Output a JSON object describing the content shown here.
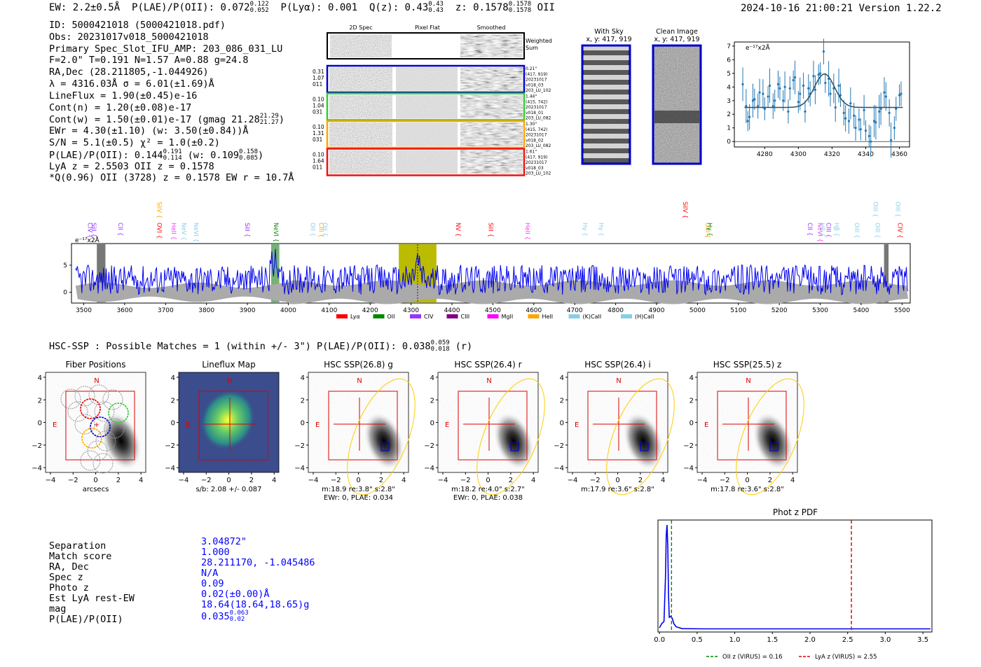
{
  "header": {
    "ew": "EW: 2.2±0.5Å",
    "plae_label": "P(LAE)/P(OII): 0.072",
    "plae_hi": "0.122",
    "plae_lo": "0.052",
    "plya": "P(Lyα): 0.001",
    "q_label": "Q(z): 0.43",
    "q_hi": "0.43",
    "q_lo": "0.43",
    "z_label": "z: 0.1578",
    "z_hi": "0.1578",
    "z_lo": "0.1578",
    "line": "OII",
    "timestamp": "2024-10-16 21:00:21  Version 1.22.2"
  },
  "info": {
    "id": "ID: 5000421018 (5000421018.pdf)",
    "obs": "Obs: 20231017v018_5000421018",
    "primary": "Primary Spec_Slot_IFU_AMP: 203_086_031_LU",
    "fiber": "F=2.0\"  T=0.191  N=1.57  A=0.88  g=24.8",
    "radec": "RA,Dec (28.211805,-1.044926)",
    "lambda": "λ = 4316.03Å  σ = 6.01(±1.69)Å",
    "lineflux": "LineFlux = 1.90(±0.45)e-16",
    "contn": "Cont(n) = 1.20(±0.08)e-17",
    "contw": "Cont(w) = 1.50(±0.01)e-17 (gmag 21.28",
    "contw_hi": "21.29",
    "contw_lo": "21.27",
    "ewr": "EWr = 4.30(±1.10) (w: 3.50(±0.84))Å",
    "sn": "S/N = 5.1(±0.5)  χ² = 1.0(±0.2)",
    "plae": "P(LAE)/P(OII): 0.144",
    "plae_hi": "0.191",
    "plae_lo": "0.114",
    "plae_w": "(w: 0.109",
    "plae_w_hi": "0.158",
    "plae_w_lo": "0.085",
    "lya": "LyA z = 2.5503  OII z = 0.1578",
    "qline": "*Q(0.96) OII (3728) z = 0.1578  EW r = 10.7Å"
  },
  "cutouts": {
    "col_labels": [
      "2D Spec",
      "Pixel Flat",
      "Smoothed"
    ],
    "weighted": [
      "Weighted",
      "Sum"
    ],
    "rows": [
      {
        "left": [
          "0.31",
          "1.07",
          "011"
        ],
        "right": [
          "0.21\"",
          "(417, 919)",
          "20231017",
          "v018_03",
          "203_LU_102"
        ],
        "color": "#0000cc"
      },
      {
        "left": [
          "0.10",
          "1.04",
          "031"
        ],
        "right": [
          "1.44\"",
          "(415, 742)",
          "20231017",
          "v018_01",
          "203_LU_082"
        ],
        "color": "#33cc33"
      },
      {
        "left": [
          "0.10",
          "1.31",
          "031"
        ],
        "right": [
          "1.30\"",
          "(415, 742)",
          "20231017",
          "v018_02",
          "203_LU_082"
        ],
        "color": "#ffa500"
      },
      {
        "left": [
          "0.10",
          "1.64",
          "011"
        ],
        "right": [
          "1.61\"",
          "(417, 919)",
          "20231017",
          "v018_03",
          "203_LU_102"
        ],
        "color": "#ee1111"
      }
    ],
    "with_sky": "With Sky",
    "with_sky_coords": "x, y: 417, 919",
    "clean": "Clean Image",
    "clean_coords": "x, y: 417, 919"
  },
  "fit_plot": {
    "unit": "e⁻¹⁷x2Å",
    "xticks": [
      "4280",
      "4300",
      "4320",
      "4340",
      "4360"
    ],
    "yticks": [
      "0",
      "1",
      "2",
      "3",
      "4",
      "5",
      "6",
      "7"
    ],
    "data": [
      [
        4267,
        4.2
      ],
      [
        4269,
        2.6
      ],
      [
        4270,
        1.5
      ],
      [
        4271,
        1.8
      ],
      [
        4273,
        3.0
      ],
      [
        4274,
        3.1
      ],
      [
        4276,
        2.6
      ],
      [
        4277,
        3.6
      ],
      [
        4279,
        3.5
      ],
      [
        4280,
        2.4
      ],
      [
        4282,
        3.3
      ],
      [
        4283,
        4.1
      ],
      [
        4285,
        2.6
      ],
      [
        4286,
        3.0
      ],
      [
        4288,
        4.2
      ],
      [
        4289,
        3.9
      ],
      [
        4291,
        3.0
      ],
      [
        4292,
        4.0
      ],
      [
        4294,
        2.2
      ],
      [
        4295,
        3.9
      ],
      [
        4297,
        4.5
      ],
      [
        4298,
        4.7
      ],
      [
        4300,
        2.9
      ],
      [
        4301,
        3.5
      ],
      [
        4303,
        4.1
      ],
      [
        4304,
        2.2
      ],
      [
        4306,
        3.9
      ],
      [
        4307,
        3.5
      ],
      [
        4309,
        4.8
      ],
      [
        4310,
        3.8
      ],
      [
        4312,
        4.9
      ],
      [
        4313,
        5.0
      ],
      [
        4315,
        6.6
      ],
      [
        4316,
        4.3
      ],
      [
        4318,
        4.6
      ],
      [
        4319,
        3.5
      ],
      [
        4321,
        3.9
      ],
      [
        4322,
        2.5
      ],
      [
        4324,
        4.1
      ],
      [
        4325,
        3.4
      ],
      [
        4327,
        2.1
      ],
      [
        4328,
        1.7
      ],
      [
        4330,
        1.5
      ],
      [
        4331,
        2.8
      ],
      [
        4333,
        1.9
      ],
      [
        4334,
        1.0
      ],
      [
        4336,
        1.6
      ],
      [
        4337,
        0.9
      ],
      [
        4339,
        2.3
      ],
      [
        4340,
        0.8
      ],
      [
        4342,
        0.4
      ],
      [
        4343,
        0.0
      ],
      [
        4345,
        1.5
      ],
      [
        4346,
        1.4
      ],
      [
        4348,
        2.2
      ],
      [
        4349,
        2.4
      ],
      [
        4351,
        3.6
      ],
      [
        4352,
        3.3
      ],
      [
        4354,
        2.1
      ],
      [
        4355,
        0.1
      ],
      [
        4357,
        1.0
      ],
      [
        4358,
        2.4
      ],
      [
        4360,
        3.4
      ],
      [
        4361,
        3.5
      ]
    ]
  },
  "spectrum": {
    "unit": "e⁻¹⁷x2Å",
    "xticks": [
      "3500",
      "3600",
      "3700",
      "3800",
      "3900",
      "4000",
      "4100",
      "4200",
      "4300",
      "4400",
      "4500",
      "4600",
      "4700",
      "4800",
      "4900",
      "5000",
      "5100",
      "5200",
      "5300",
      "5400",
      "5500"
    ],
    "yticks": [
      "0",
      "5"
    ],
    "lines": [
      {
        "label": "SiII",
        "color": "#9933ff",
        "wl": 3520
      },
      {
        "label": "CIV",
        "color": "#9933ff",
        "wl": 3510
      },
      {
        "label": "CII",
        "color": "#9933ff",
        "wl": 3585
      },
      {
        "label": "SiIV",
        "color": "#ffa500",
        "wl": 3680
      },
      {
        "label": "OVI",
        "color": "#ff0000",
        "wl": 3680
      },
      {
        "label": "HeII",
        "color": "#ff33ff",
        "wl": 3715
      },
      {
        "label": "NeV",
        "color": "#87ceeb",
        "wl": 3740
      },
      {
        "label": "NeVI",
        "color": "#87ceeb",
        "wl": 3770
      },
      {
        "label": "SiII",
        "color": "#9933ff",
        "wl": 3895
      },
      {
        "label": "NeVI",
        "color": "#008800",
        "wl": 3965
      },
      {
        "label": "OII",
        "color": "#87ceeb",
        "wl": 4055
      },
      {
        "label": "CIII",
        "color": "#ffa500",
        "wl": 4075
      },
      {
        "label": "OII",
        "color": "#87ceeb",
        "wl": 4085
      },
      {
        "label": "NV",
        "color": "#ff0000",
        "wl": 4410
      },
      {
        "label": "SiII",
        "color": "#ff0000",
        "wl": 4490
      },
      {
        "label": "HeII",
        "color": "#ff33ff",
        "wl": 4580
      },
      {
        "label": "Hγ",
        "color": "#87ceeb",
        "wl": 4720
      },
      {
        "label": "Hγ",
        "color": "#87ceeb",
        "wl": 4760
      },
      {
        "label": "SiIV",
        "color": "#ff0000",
        "wl": 4965
      },
      {
        "label": "OIII",
        "color": "#ffa500",
        "wl": 5020
      },
      {
        "label": "Hγ",
        "color": "#008800",
        "wl": 5025
      },
      {
        "label": "CII",
        "color": "#9933ff",
        "wl": 5270
      },
      {
        "label": "NeVI",
        "color": "#ff33ff",
        "wl": 5295
      },
      {
        "label": "Hβ",
        "color": "#87ceeb",
        "wl": 5300
      },
      {
        "label": "CIII",
        "color": "#9933ff",
        "wl": 5315
      },
      {
        "label": "Hβ",
        "color": "#87ceeb",
        "wl": 5335
      },
      {
        "label": "OIII",
        "color": "#87ceeb",
        "wl": 5385
      },
      {
        "label": "OIII",
        "color": "#87ceeb",
        "wl": 5430
      },
      {
        "label": "OIII",
        "color": "#87ceeb",
        "wl": 5435
      },
      {
        "label": "CIV",
        "color": "#ff0000",
        "wl": 5490
      },
      {
        "label": "OIII",
        "color": "#87ceeb",
        "wl": 5485
      }
    ],
    "legend": [
      {
        "label": "Lyα",
        "color": "#ff0000"
      },
      {
        "label": "OII",
        "color": "#008800"
      },
      {
        "label": "CIV",
        "color": "#9933ff"
      },
      {
        "label": "CIII",
        "color": "#800080"
      },
      {
        "label": "MgII",
        "color": "#ff00ff"
      },
      {
        "label": "HeII",
        "color": "#ffa500"
      },
      {
        "label": "(K)CaII",
        "color": "#87ceeb"
      },
      {
        "label": "(H)CaII",
        "color": "#87ceeb"
      }
    ],
    "highlight_range": [
      4270,
      4362
    ],
    "green_range": [
      3958,
      3978
    ],
    "grey_ranges": [
      [
        3532,
        3553
      ],
      [
        5456,
        5467
      ]
    ],
    "center_wl": 4316
  },
  "hsc_line": "HSC-SSP : Possible Matches = 1 (within +/- 3\")  P(LAE)/P(OII): 0.038",
  "hsc_hi": "0.059",
  "hsc_lo": "0.018",
  "hsc_band": "(r)",
  "thumbnails": [
    {
      "title": "Fiber Positions",
      "caption1": "arcsecs",
      "caption2": ""
    },
    {
      "title": "Lineflux Map",
      "caption1": "s/b: 2.08 +/- 0.087",
      "caption2": ""
    },
    {
      "title": "HSC SSP(26.8) g",
      "caption1": "m:18.9  re:3.8\"  s:2.8\"",
      "caption2": "EWr: 0, PLAE: 0.034"
    },
    {
      "title": "HSC SSP(26.4) r",
      "caption1": "m:18.2  re:4.0\"  s:2.7\"",
      "caption2": "EWr: 0, PLAE: 0.038"
    },
    {
      "title": "HSC SSP(26.4) i",
      "caption1": "m:17.9  re:3.6\"  s:2.8\"",
      "caption2": ""
    },
    {
      "title": "HSC SSP(25.5) z",
      "caption1": "m:17.8  re:3.6\"  s:2.8\"",
      "caption2": ""
    }
  ],
  "thumb_ticks": [
    "−4",
    "−2",
    "0",
    "2",
    "4"
  ],
  "compass_n": "N",
  "compass_e": "E",
  "match_table": {
    "labels": [
      "Separation",
      "Match score",
      "RA, Dec",
      "Spec z",
      "Photo z",
      "Est LyA rest-EW",
      "mag",
      "P(LAE)/P(OII)"
    ],
    "values": [
      "3.04872\"",
      "1.000",
      "28.211170, -1.045486",
      "N/A",
      "0.09",
      "0.02(±0.00)Å",
      "18.64(18.64,18.65)g",
      "0.035"
    ],
    "plae_hi": "0.063",
    "plae_lo": "0.02"
  },
  "photz": {
    "title": "Phot z PDF",
    "xticks": [
      "0.0",
      "0.5",
      "1.0",
      "1.5",
      "2.0",
      "2.5",
      "3.0",
      "3.5"
    ],
    "oii_z": 0.16,
    "lya_z": 2.55,
    "legend_oii": "OII z (VIRUS) = 0.16",
    "legend_lya": "LyA z (VIRUS) = 2.55",
    "pdf": [
      [
        0.0,
        0.02
      ],
      [
        0.03,
        0.06
      ],
      [
        0.06,
        0.08
      ],
      [
        0.08,
        0.5
      ],
      [
        0.09,
        0.9
      ],
      [
        0.1,
        1.0
      ],
      [
        0.11,
        0.8
      ],
      [
        0.12,
        0.35
      ],
      [
        0.13,
        0.12
      ],
      [
        0.15,
        0.13
      ],
      [
        0.17,
        0.11
      ],
      [
        0.19,
        0.06
      ],
      [
        0.22,
        0.03
      ],
      [
        0.3,
        0.012
      ],
      [
        0.6,
        0.01
      ],
      [
        1.0,
        0.01
      ],
      [
        2.0,
        0.01
      ],
      [
        3.0,
        0.01
      ],
      [
        3.6,
        0.01
      ]
    ]
  }
}
